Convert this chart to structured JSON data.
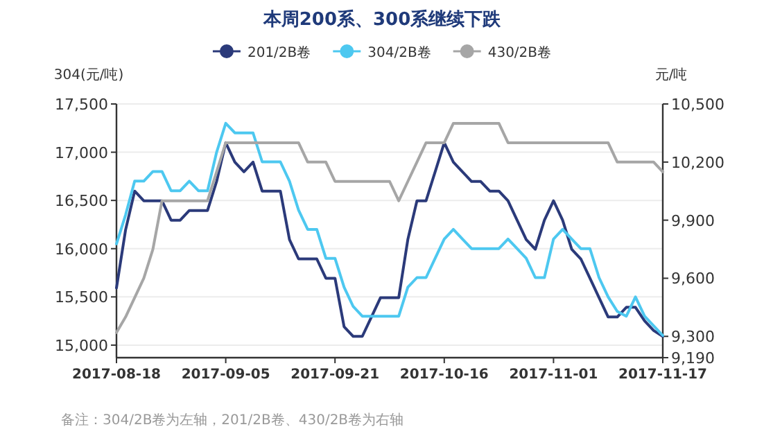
{
  "chart_data": {
    "type": "line",
    "title": "本周200系、300系继续下跌",
    "ylabel": "304(元/吨)",
    "y2label": "元/吨",
    "categories": [
      "2017-08-18",
      null,
      null,
      null,
      null,
      null,
      null,
      null,
      null,
      null,
      null,
      null,
      "2017-09-05",
      null,
      null,
      null,
      null,
      null,
      null,
      null,
      null,
      null,
      null,
      null,
      "2017-09-21",
      null,
      null,
      null,
      null,
      null,
      null,
      null,
      null,
      null,
      null,
      null,
      "2017-10-16",
      null,
      null,
      null,
      null,
      null,
      null,
      null,
      null,
      null,
      null,
      null,
      "2017-11-01",
      null,
      null,
      null,
      null,
      null,
      null,
      null,
      null,
      null,
      null,
      null,
      "2017-11-17"
    ],
    "series": [
      {
        "name": "201/2B卷",
        "color": "#2b3a7a",
        "axis": "y2",
        "values": [
          9550,
          9850,
          10050,
          10000,
          10000,
          10000,
          9900,
          9900,
          9950,
          9950,
          9950,
          10100,
          10300,
          10200,
          10150,
          10200,
          10050,
          10050,
          10050,
          9800,
          9700,
          9700,
          9700,
          9600,
          9600,
          9350,
          9300,
          9300,
          9400,
          9500,
          9500,
          9500,
          9800,
          10000,
          10000,
          10150,
          10300,
          10200,
          10150,
          10100,
          10100,
          10050,
          10050,
          10000,
          9900,
          9800,
          9750,
          9900,
          10000,
          9900,
          9750,
          9700,
          9600,
          9500,
          9400,
          9400,
          9450,
          9450,
          9380,
          9330,
          9300
        ]
      },
      {
        "name": "304/2B卷",
        "color": "#4dc8f0",
        "values": [
          16050,
          16350,
          16700,
          16700,
          16800,
          16800,
          16600,
          16600,
          16700,
          16600,
          16600,
          17000,
          17300,
          17200,
          17200,
          17200,
          16900,
          16900,
          16900,
          16700,
          16400,
          16200,
          16200,
          15900,
          15900,
          15600,
          15400,
          15300,
          15300,
          15300,
          15300,
          15300,
          15600,
          15700,
          15700,
          15900,
          16100,
          16200,
          16100,
          16000,
          16000,
          16000,
          16000,
          16100,
          16000,
          15900,
          15700,
          15700,
          16100,
          16200,
          16100,
          16000,
          16000,
          15700,
          15500,
          15350,
          15300,
          15500,
          15300,
          15200,
          15100
        ]
      },
      {
        "name": "430/2B卷",
        "color": "#a6a6a6",
        "axis": "y2",
        "values": [
          9320,
          9400,
          9500,
          9600,
          9750,
          10000,
          10000,
          10000,
          10000,
          10000,
          10000,
          10150,
          10300,
          10300,
          10300,
          10300,
          10300,
          10300,
          10300,
          10300,
          10300,
          10200,
          10200,
          10200,
          10100,
          10100,
          10100,
          10100,
          10100,
          10100,
          10100,
          10000,
          10100,
          10200,
          10300,
          10300,
          10300,
          10400,
          10400,
          10400,
          10400,
          10400,
          10400,
          10300,
          10300,
          10300,
          10300,
          10300,
          10300,
          10300,
          10300,
          10300,
          10300,
          10300,
          10300,
          10200,
          10200,
          10200,
          10200,
          10200,
          10150
        ]
      }
    ],
    "ylim": [
      14870,
      17500
    ],
    "yticks": [
      {
        "value": 15000,
        "label": "15,000"
      },
      {
        "value": 15500,
        "label": "15,500"
      },
      {
        "value": 16000,
        "label": "16,000"
      },
      {
        "value": 16500,
        "label": "16,500"
      },
      {
        "value": 17000,
        "label": "17,000"
      },
      {
        "value": 17500,
        "label": "17,500"
      }
    ],
    "y2lim": [
      9190,
      10500
    ],
    "y2ticks": [
      {
        "value": 9190,
        "label": "9,190"
      },
      {
        "value": 9300,
        "label": "9,300"
      },
      {
        "value": 9600,
        "label": "9,600"
      },
      {
        "value": 9900,
        "label": "9,900"
      },
      {
        "value": 10200,
        "label": "10,200"
      },
      {
        "value": 10500,
        "label": "10,500"
      }
    ],
    "grid": "y",
    "legend": "top",
    "annotations": [
      "备注：304/2B卷为左轴，201/2B卷、430/2B卷为右轴"
    ]
  }
}
